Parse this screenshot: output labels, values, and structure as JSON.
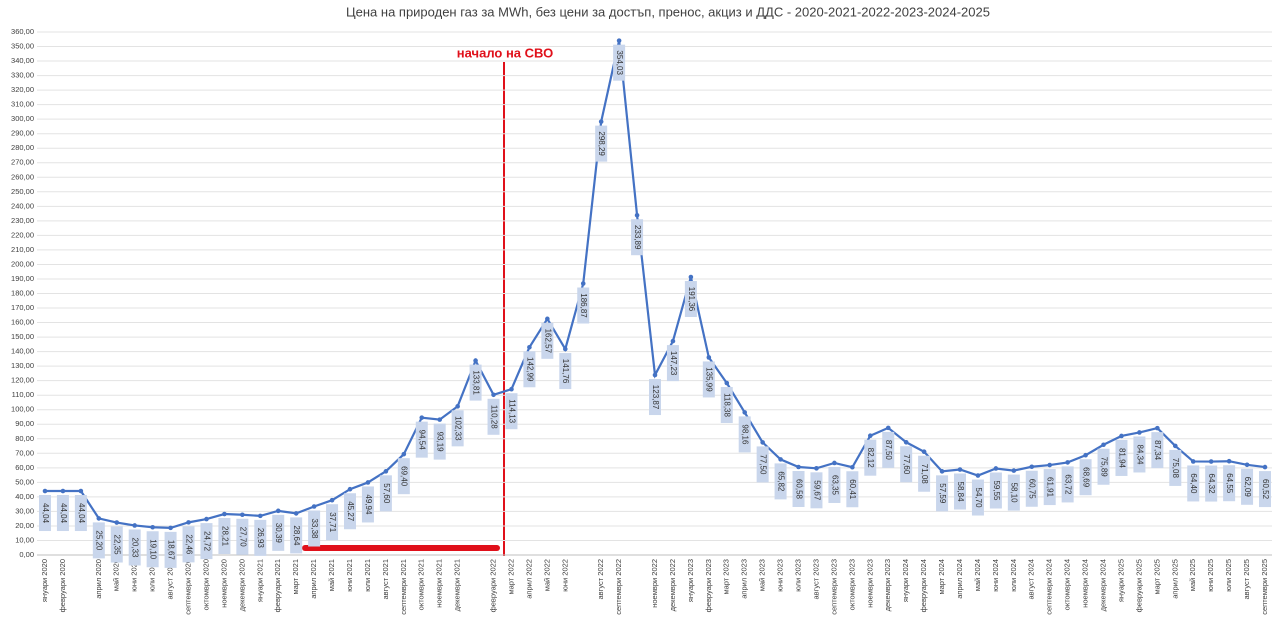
{
  "chart_data": {
    "type": "line",
    "title": "Цена на природен газ за MWh, без цени за достъп, пренос, акциз и ДДС - 2020-2021-2022-2023-2024-2025",
    "annotation": "начало на СВО",
    "categories": [
      "януари 2020",
      "февруари 2020",
      null,
      "април 2020",
      "май 2020",
      "юни 2020",
      "юли 2020",
      "август 2020",
      "септември 2020",
      "октомври 2020",
      "ноември 2020",
      "декември 2020",
      "януари 2021",
      "февруари 2021",
      "март 2021",
      "април 2021",
      "май 2021",
      "юни 2021",
      "юли 2021",
      "август 2021",
      "септември 2021",
      "октомври 2021",
      "ноември 2021",
      "декември 2021",
      null,
      "февруари 2022",
      "март 2022",
      "април 2022",
      "май 2022",
      "юни 2022",
      null,
      "август 2022",
      "септември 2022",
      null,
      "ноември 2022",
      "декември 2022",
      "януари 2023",
      "февруари 2023",
      "март 2023",
      "април 2023",
      "май 2023",
      "юни 2023",
      "юли 2023",
      "август 2023",
      "септември 2023",
      "октомври 2023",
      "ноември 2023",
      "декември 2023",
      "януари 2024",
      "февруари 2024",
      "март 2024",
      "април 2024",
      "май 2024",
      "юни 2024",
      "юли 2024",
      "август 2024",
      "септември 2024",
      "октомври 2024",
      "ноември 2024",
      "декември 2024",
      "януари 2025",
      "февруари 2025",
      "март 2025",
      "април 2025",
      "май 2025",
      "юни 2025",
      "юли 2025",
      "август 2025",
      "септември 2025"
    ],
    "series": [
      {
        "color": "#4472c4",
        "values": [
          44.04,
          44.04,
          44.04,
          25.2,
          22.35,
          20.33,
          19.1,
          18.67,
          22.46,
          24.72,
          28.21,
          27.7,
          26.93,
          30.39,
          28.64,
          33.38,
          37.71,
          45.27,
          49.94,
          57.6,
          69.4,
          94.54,
          93.19,
          102.33,
          133.81,
          110.28,
          114.13,
          142.99,
          162.57,
          141.76,
          186.87,
          298.29,
          354.03,
          233.89,
          123.87,
          147.23,
          191.36,
          135.99,
          118.38,
          98.16,
          77.5,
          65.82,
          60.58,
          59.67,
          63.35,
          60.41,
          82.12,
          87.5,
          77.6,
          71.08,
          57.59,
          58.84,
          54.7,
          59.55,
          58.1,
          60.75,
          61.91,
          63.72,
          68.69,
          75.89,
          81.94,
          84.34,
          87.34,
          75.08,
          64.4,
          64.32,
          64.55,
          62.09,
          60.52
        ],
        "value_labels": [
          "44,04",
          "44,04",
          "44,04",
          "25,20",
          "22,35",
          "20,33",
          "19,10",
          "18,67",
          "22,46",
          "24,72",
          "28,21",
          "27,70",
          "26,93",
          "30,39",
          "28,64",
          "33,38",
          "37,71",
          "45,27",
          "49,94",
          "57,60",
          "69,40",
          "94,54",
          "93,19",
          "102,33",
          "133,81",
          "110,28",
          "114,13",
          "142,99",
          "162,57",
          "141,76",
          "186,87",
          "298,29",
          "354,03",
          "233,89",
          "123,87",
          "147,23",
          "191,36",
          "135,99",
          "118,38",
          "98,16",
          "77,50",
          "65,82",
          "60,58",
          "59,67",
          "63,35",
          "60,41",
          "82,12",
          "87,50",
          "77,60",
          "71,08",
          "57,59",
          "58,84",
          "54,70",
          "59,55",
          "58,10",
          "60,75",
          "61,91",
          "63,72",
          "68,69",
          "75,89",
          "81,94",
          "84,34",
          "87,34",
          "75,08",
          "64,40",
          "64,32",
          "64,55",
          "62,09",
          "60,52"
        ]
      }
    ],
    "ylim": [
      0,
      360
    ],
    "yticks": [
      {
        "value": 0,
        "label": "0,00"
      },
      {
        "value": 10,
        "label": "10,00"
      },
      {
        "value": 20,
        "label": "20,00"
      },
      {
        "value": 30,
        "label": "30,00"
      },
      {
        "value": 40,
        "label": "40,00"
      },
      {
        "value": 50,
        "label": "50,00"
      },
      {
        "value": 60,
        "label": "60,00"
      },
      {
        "value": 70,
        "label": "70,00"
      },
      {
        "value": 80,
        "label": "80,00"
      },
      {
        "value": 90,
        "label": "90,00"
      },
      {
        "value": 100,
        "label": "100,00"
      },
      {
        "value": 110,
        "label": "110,00"
      },
      {
        "value": 120,
        "label": "120,00"
      },
      {
        "value": 130,
        "label": "130,00"
      },
      {
        "value": 140,
        "label": "140,00"
      },
      {
        "value": 150,
        "label": "150,00"
      },
      {
        "value": 160,
        "label": "160,00"
      },
      {
        "value": 170,
        "label": "170,00"
      },
      {
        "value": 180,
        "label": "180,00"
      },
      {
        "value": 190,
        "label": "190,00"
      },
      {
        "value": 200,
        "label": "200,00"
      },
      {
        "value": 210,
        "label": "210,00"
      },
      {
        "value": 220,
        "label": "220,00"
      },
      {
        "value": 230,
        "label": "230,00"
      },
      {
        "value": 240,
        "label": "240,00"
      },
      {
        "value": 250,
        "label": "250,00"
      },
      {
        "value": 260,
        "label": "260,00"
      },
      {
        "value": 270,
        "label": "270,00"
      },
      {
        "value": 280,
        "label": "280,00"
      },
      {
        "value": 290,
        "label": "290,00"
      },
      {
        "value": 300,
        "label": "300,00"
      },
      {
        "value": 310,
        "label": "310,00"
      },
      {
        "value": 320,
        "label": "320,00"
      },
      {
        "value": 330,
        "label": "330,00"
      },
      {
        "value": 340,
        "label": "340,00"
      },
      {
        "value": 350,
        "label": "350,00"
      },
      {
        "value": 360,
        "label": "360,00"
      }
    ],
    "grid": true
  }
}
